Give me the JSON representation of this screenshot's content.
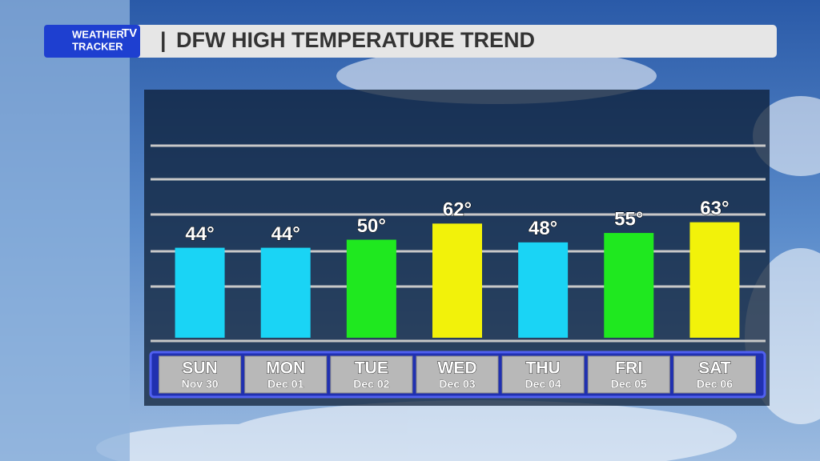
{
  "logo": {
    "line1": "WEATHER",
    "line2": "TRACKER",
    "badge": "TV"
  },
  "chart_data": {
    "type": "bar",
    "title": "DFW HIGH TEMPERATURE TREND",
    "categories": [
      "SUN",
      "MON",
      "TUE",
      "WED",
      "THU",
      "FRI",
      "SAT"
    ],
    "dates": [
      "Nov 30",
      "Dec 01",
      "Dec 02",
      "Dec 03",
      "Dec 04",
      "Dec 05",
      "Dec 06"
    ],
    "values": [
      44,
      44,
      50,
      62,
      48,
      55,
      63
    ],
    "value_labels": [
      "44°",
      "44°",
      "50°",
      "62°",
      "48°",
      "55°",
      "63°"
    ],
    "colors": [
      "#1ad4f5",
      "#1ad4f5",
      "#1fe81f",
      "#f2f20a",
      "#1ad4f5",
      "#1fe81f",
      "#f2f20a"
    ],
    "ylim": [
      -23,
      120
    ]
  }
}
